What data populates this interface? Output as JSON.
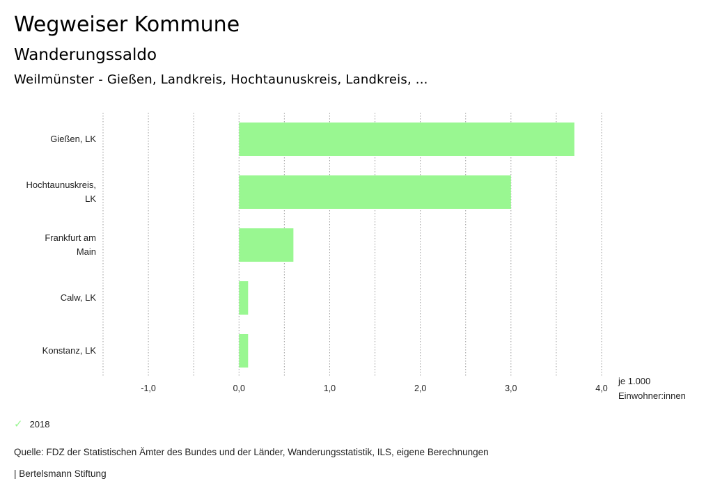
{
  "header": {
    "title": "Wegweiser Kommune",
    "subtitle": "Wanderungssaldo",
    "region": "Weilmünster - Gießen, Landkreis, Hochtaunuskreis, Landkreis, ..."
  },
  "legend": {
    "check_icon": "check-icon",
    "label": "2018",
    "color": "#99f791"
  },
  "source": "Quelle: FDZ der Statistischen Ämter des Bundes und der Länder, Wanderungsstatistik, ILS, eigene Berechnungen",
  "footer": "| Bertelsmann Stiftung",
  "chart_data": {
    "type": "bar",
    "orientation": "horizontal",
    "categories": [
      [
        "Gießen, LK"
      ],
      [
        "Hochtaunuskreis,",
        "LK"
      ],
      [
        "Frankfurt am",
        "Main"
      ],
      [
        "Calw, LK"
      ],
      [
        "Konstanz, LK"
      ]
    ],
    "series": [
      {
        "name": "2018",
        "values": [
          3.7,
          3.0,
          0.6,
          0.1,
          0.1
        ],
        "color": "#99f791"
      }
    ],
    "xlim": [
      -1.5,
      4.0
    ],
    "ticks": [
      {
        "value": -1,
        "label": "-1,0"
      },
      {
        "value": 0,
        "label": "0,0"
      },
      {
        "value": 1,
        "label": "1,0"
      },
      {
        "value": 2,
        "label": "2,0"
      },
      {
        "value": 3,
        "label": "3,0"
      },
      {
        "value": 4,
        "label": "4,0"
      }
    ],
    "unit_label": [
      "je 1.000",
      "Einwohner:innen"
    ],
    "grid": true,
    "gridlines": [
      -1.5,
      -1.0,
      -0.5,
      0,
      0.5,
      1.0,
      1.5,
      2.0,
      2.5,
      3.0,
      3.5,
      4.0
    ]
  }
}
